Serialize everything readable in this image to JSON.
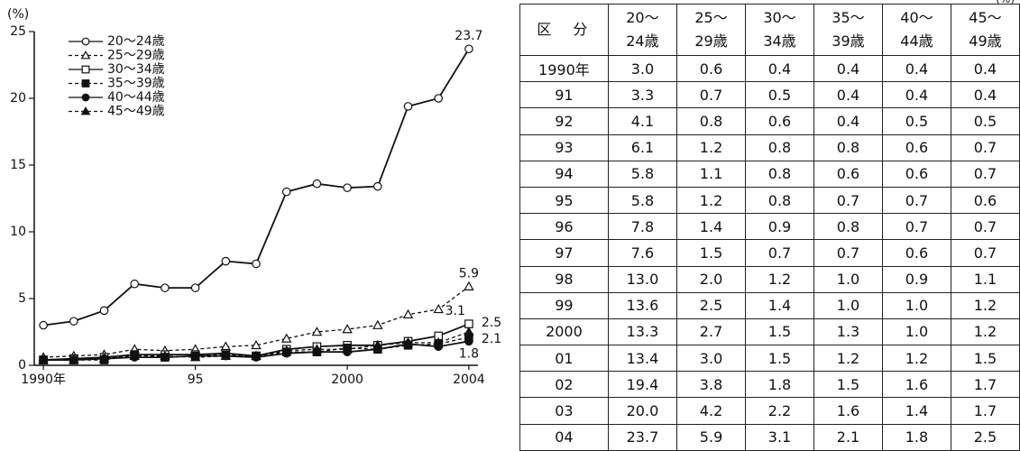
{
  "chart_data": {
    "type": "line",
    "y_label": "(%)",
    "x": [
      1990,
      1991,
      1992,
      1993,
      1994,
      1995,
      1996,
      1997,
      1998,
      1999,
      2000,
      2001,
      2002,
      2003,
      2004
    ],
    "xlim": [
      1989.7,
      2004.3
    ],
    "xticks": [
      {
        "value": 1990,
        "label": "1990年"
      },
      {
        "value": 1995,
        "label": "95"
      },
      2000,
      2004
    ],
    "ylim": [
      0,
      25
    ],
    "yticks": [
      0,
      5,
      10,
      15,
      20,
      25
    ],
    "legend": "upper left",
    "series": [
      {
        "name": "20～24歳",
        "color": "#111111",
        "marker": "circle",
        "filled": false,
        "dashed": false,
        "values": [
          3.0,
          3.3,
          4.1,
          6.1,
          5.8,
          5.8,
          7.8,
          7.6,
          13.0,
          13.6,
          13.3,
          13.4,
          19.4,
          20.0,
          23.7
        ]
      },
      {
        "name": "25～29歳",
        "color": "#111111",
        "marker": "triangle",
        "filled": false,
        "dashed": true,
        "values": [
          0.6,
          0.7,
          0.8,
          1.2,
          1.1,
          1.2,
          1.4,
          1.5,
          2.0,
          2.5,
          2.7,
          3.0,
          3.8,
          4.2,
          5.9
        ]
      },
      {
        "name": "30～34歳",
        "color": "#111111",
        "marker": "square",
        "filled": false,
        "dashed": false,
        "values": [
          0.4,
          0.5,
          0.6,
          0.8,
          0.8,
          0.8,
          0.9,
          0.7,
          1.2,
          1.4,
          1.5,
          1.5,
          1.8,
          2.2,
          3.1
        ]
      },
      {
        "name": "35～39歳",
        "color": "#111111",
        "marker": "square",
        "filled": true,
        "dashed": true,
        "values": [
          0.4,
          0.4,
          0.4,
          0.8,
          0.6,
          0.7,
          0.8,
          0.7,
          1.0,
          1.0,
          1.3,
          1.2,
          1.5,
          1.6,
          2.1
        ]
      },
      {
        "name": "40～44歳",
        "color": "#111111",
        "marker": "circle",
        "filled": true,
        "dashed": false,
        "values": [
          0.4,
          0.4,
          0.5,
          0.6,
          0.6,
          0.7,
          0.7,
          0.6,
          0.9,
          1.0,
          1.0,
          1.2,
          1.6,
          1.4,
          1.8
        ]
      },
      {
        "name": "45～49歳",
        "color": "#111111",
        "marker": "triangle",
        "filled": true,
        "dashed": true,
        "values": [
          0.4,
          0.4,
          0.5,
          0.7,
          0.7,
          0.6,
          0.7,
          0.7,
          1.1,
          1.2,
          1.2,
          1.5,
          1.7,
          1.7,
          2.5
        ]
      }
    ]
  },
  "table": {
    "unit": "(%)",
    "header": [
      [
        "区　分"
      ],
      [
        "20～",
        "24歳"
      ],
      [
        "25～",
        "29歳"
      ],
      [
        "30～",
        "34歳"
      ],
      [
        "35～",
        "39歳"
      ],
      [
        "40～",
        "44歳"
      ],
      [
        "45～",
        "49歳"
      ]
    ],
    "rows": [
      [
        "1990年",
        "3.0",
        "0.6",
        "0.4",
        "0.4",
        "0.4",
        "0.4"
      ],
      [
        "91",
        "3.3",
        "0.7",
        "0.5",
        "0.4",
        "0.4",
        "0.4"
      ],
      [
        "92",
        "4.1",
        "0.8",
        "0.6",
        "0.4",
        "0.5",
        "0.5"
      ],
      [
        "93",
        "6.1",
        "1.2",
        "0.8",
        "0.8",
        "0.6",
        "0.7"
      ],
      [
        "94",
        "5.8",
        "1.1",
        "0.8",
        "0.6",
        "0.6",
        "0.7"
      ],
      [
        "95",
        "5.8",
        "1.2",
        "0.8",
        "0.7",
        "0.7",
        "0.6"
      ],
      [
        "96",
        "7.8",
        "1.4",
        "0.9",
        "0.8",
        "0.7",
        "0.7"
      ],
      [
        "97",
        "7.6",
        "1.5",
        "0.7",
        "0.7",
        "0.6",
        "0.7"
      ],
      [
        "98",
        "13.0",
        "2.0",
        "1.2",
        "1.0",
        "0.9",
        "1.1"
      ],
      [
        "99",
        "13.6",
        "2.5",
        "1.4",
        "1.0",
        "1.0",
        "1.2"
      ],
      [
        "2000",
        "13.3",
        "2.7",
        "1.5",
        "1.3",
        "1.0",
        "1.2"
      ],
      [
        "01",
        "13.4",
        "3.0",
        "1.5",
        "1.2",
        "1.2",
        "1.5"
      ],
      [
        "02",
        "19.4",
        "3.8",
        "1.8",
        "1.5",
        "1.6",
        "1.7"
      ],
      [
        "03",
        "20.0",
        "4.2",
        "2.2",
        "1.6",
        "1.4",
        "1.7"
      ],
      [
        "04",
        "23.7",
        "5.9",
        "3.1",
        "2.1",
        "1.8",
        "2.5"
      ]
    ]
  }
}
